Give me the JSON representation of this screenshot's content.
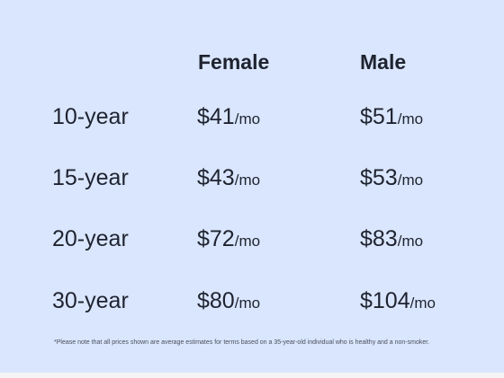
{
  "headers": {
    "female": "Female",
    "male": "Male"
  },
  "rows": [
    {
      "term": "10-year",
      "female": "$41",
      "male": "$51"
    },
    {
      "term": "15-year",
      "female": "$43",
      "male": "$53"
    },
    {
      "term": "20-year",
      "female": "$72",
      "male": "$83"
    },
    {
      "term": "30-year",
      "female": "$80",
      "male": "$104"
    }
  ],
  "unit": "/mo",
  "footnote": "*Please note that all prices shown are average estimates for terms based on a 35-year-old individual who is healthy and a non-smoker.",
  "colors": {
    "background": "#d9e6fd",
    "text": "#1f2330"
  }
}
